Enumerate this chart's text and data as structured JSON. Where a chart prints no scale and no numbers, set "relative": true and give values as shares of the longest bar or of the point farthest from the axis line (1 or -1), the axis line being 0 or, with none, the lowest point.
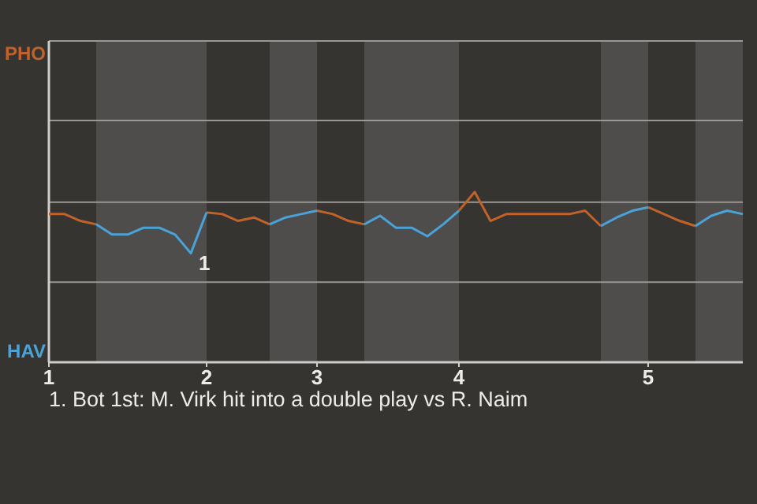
{
  "chart_data": {
    "type": "line",
    "relative": true,
    "categories": [
      "1",
      null,
      null,
      null,
      null,
      null,
      null,
      null,
      null,
      null,
      "2",
      null,
      null,
      null,
      null,
      null,
      null,
      "3",
      null,
      null,
      null,
      null,
      null,
      null,
      null,
      null,
      "4",
      null,
      null,
      null,
      null,
      null,
      null,
      null,
      null,
      null,
      null,
      null,
      "5",
      null,
      null,
      null,
      null,
      null,
      null
    ],
    "series": [
      {
        "color": "#c0622a",
        "values": [
          0.87,
          0.87,
          0.83,
          0.81,
          null,
          null,
          null,
          null,
          null,
          null,
          0.88,
          0.87,
          0.83,
          0.85,
          0.81,
          null,
          null,
          0.89,
          0.87,
          0.83,
          0.81,
          null,
          null,
          null,
          null,
          null,
          0.89,
          1,
          0.83,
          0.87,
          0.87,
          0.87,
          0.87,
          0.87,
          0.89,
          0.8,
          null,
          null,
          0.91,
          0.87,
          0.83,
          0.8,
          null,
          null,
          null
        ]
      },
      {
        "color": "#4aa3d8",
        "values": [
          null,
          null,
          null,
          0.81,
          0.75,
          0.75,
          0.79,
          0.79,
          0.75,
          0.64,
          0.88,
          null,
          null,
          null,
          0.81,
          0.85,
          0.87,
          0.89,
          null,
          null,
          0.81,
          0.86,
          0.79,
          0.79,
          0.74,
          0.81,
          0.89,
          null,
          null,
          null,
          null,
          null,
          null,
          null,
          null,
          0.8,
          0.85,
          0.89,
          0.91,
          null,
          null,
          0.8,
          0.86,
          0.89,
          0.87
        ]
      }
    ],
    "marker": "none",
    "line_style": "solid",
    "ref_lines": [
      {
        "axis": "y",
        "value": 0.47,
        "color": "#9a9894"
      },
      {
        "axis": "y",
        "value": 0.94,
        "color": "#9a9894"
      },
      {
        "axis": "y",
        "value": 1.42,
        "color": "#9a9894"
      }
    ],
    "annotations": [
      "PHO",
      "HAV",
      "1",
      "1. Bot 1st: M. Virk hit into a double play vs R. Naim"
    ]
  }
}
